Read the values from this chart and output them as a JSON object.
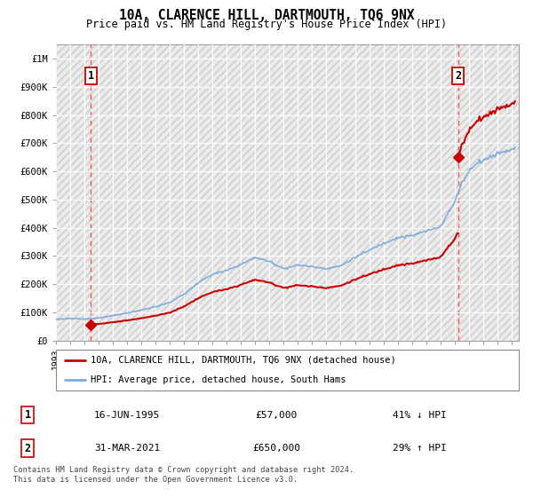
{
  "title": "10A, CLARENCE HILL, DARTMOUTH, TQ6 9NX",
  "subtitle": "Price paid vs. HM Land Registry's House Price Index (HPI)",
  "ylim": [
    0,
    1050000
  ],
  "xlim_start": 1993.0,
  "xlim_end": 2025.5,
  "hpi_color": "#7aaadd",
  "price_color": "#cc0000",
  "dashed_line_color": "#ff5555",
  "transaction1_date": 1995.46,
  "transaction1_price": 57000,
  "transaction2_date": 2021.25,
  "transaction2_price": 650000,
  "legend_label1": "10A, CLARENCE HILL, DARTMOUTH, TQ6 9NX (detached house)",
  "legend_label2": "HPI: Average price, detached house, South Hams",
  "table_row1": [
    "1",
    "16-JUN-1995",
    "£57,000",
    "41% ↓ HPI"
  ],
  "table_row2": [
    "2",
    "31-MAR-2021",
    "£650,000",
    "29% ↑ HPI"
  ],
  "footer": "Contains HM Land Registry data © Crown copyright and database right 2024.\nThis data is licensed under the Open Government Licence v3.0.",
  "yticks": [
    0,
    100000,
    200000,
    300000,
    400000,
    500000,
    600000,
    700000,
    800000,
    900000,
    1000000
  ],
  "ytick_labels": [
    "£0",
    "£100K",
    "£200K",
    "£300K",
    "£400K",
    "£500K",
    "£600K",
    "£700K",
    "£800K",
    "£900K",
    "£1M"
  ],
  "hpi_anchors": {
    "1993.0": 75000,
    "1994.0": 78000,
    "1995.0": 76000,
    "1996.0": 80000,
    "1997.0": 88000,
    "1998.0": 97000,
    "1999.0": 108000,
    "2000.0": 120000,
    "2001.0": 135000,
    "2002.0": 165000,
    "2003.0": 205000,
    "2004.0": 235000,
    "2005.0": 248000,
    "2006.0": 270000,
    "2007.0": 295000,
    "2008.0": 280000,
    "2009.0": 255000,
    "2010.0": 268000,
    "2011.0": 262000,
    "2012.0": 255000,
    "2013.0": 265000,
    "2014.0": 295000,
    "2015.0": 320000,
    "2016.0": 345000,
    "2017.0": 365000,
    "2018.0": 372000,
    "2019.0": 388000,
    "2020.0": 405000,
    "2021.0": 490000,
    "2021.5": 560000,
    "2022.0": 600000,
    "2022.5": 630000,
    "2023.0": 640000,
    "2023.5": 650000,
    "2024.0": 665000,
    "2024.5": 670000,
    "2025.0": 680000,
    "2025.5": 685000
  }
}
